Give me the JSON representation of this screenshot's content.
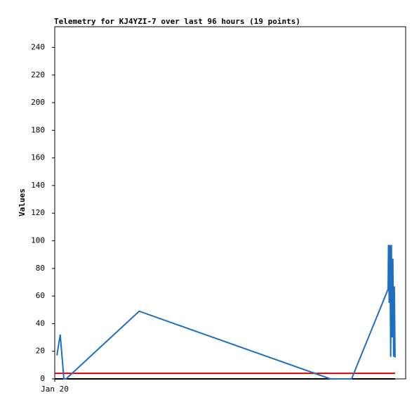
{
  "chart_data": {
    "type": "line",
    "title": "Telemetry for KJ4YZI-7 over last 96 hours (19 points)",
    "y_label": "Values",
    "x": [
      0.6,
      1.5,
      2.5,
      3.1,
      23.1,
      75.4,
      81.2,
      91.2,
      91.3,
      91.5,
      91.7,
      91.9,
      92.1,
      92.3,
      92.5,
      92.7,
      92.9,
      93.1,
      93.3
    ],
    "series": [
      {
        "color": "#1f6fc0",
        "values": [
          17,
          32,
          0,
          0,
          49,
          0,
          0,
          65,
          97,
          55,
          97,
          16,
          97,
          30,
          87,
          16,
          67,
          16,
          16
        ]
      }
    ],
    "hlines": [
      {
        "value": 4,
        "color": "#e00000"
      }
    ],
    "xlim": [
      0,
      96
    ],
    "xticks": [
      {
        "value": 0,
        "label": "Jan 20"
      }
    ],
    "ylim": [
      0,
      255
    ],
    "yticks": [
      0,
      20,
      40,
      60,
      80,
      100,
      120,
      140,
      160,
      180,
      200,
      220,
      240
    ]
  }
}
